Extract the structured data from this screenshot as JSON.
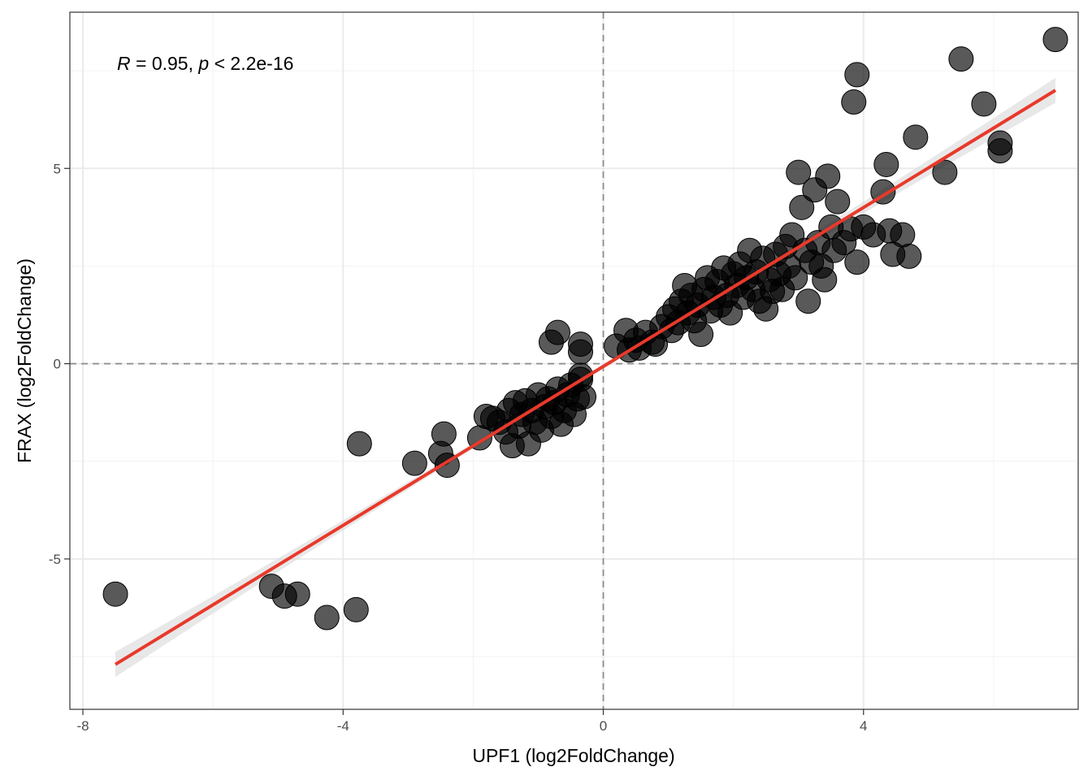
{
  "chart_data": {
    "type": "scatter",
    "xlabel": "UPF1 (log2FoldChange)",
    "ylabel": "FRAX (log2FoldChange)",
    "annotation": {
      "r_symbol": "R",
      "r_text": " = 0.95, ",
      "p_symbol": "p",
      "p_text": " < 2.2e-16"
    },
    "xlim": [
      -8.2,
      7.3
    ],
    "ylim": [
      -8.85,
      9.0
    ],
    "x_ticks": [
      -8,
      -4,
      0,
      4
    ],
    "x_tick_labels": [
      "-8",
      "-4",
      "0",
      "4"
    ],
    "y_ticks": [
      -5,
      0,
      5
    ],
    "y_tick_labels": [
      "-5",
      "0",
      "5"
    ],
    "x_minor": [
      -6,
      -2,
      2,
      6
    ],
    "y_minor": [
      -7.5,
      -2.5,
      2.5,
      7.5
    ],
    "reference_lines": {
      "x": 0,
      "y": 0
    },
    "grid": true,
    "colors": {
      "points": "#000000",
      "point_opacity": 0.65,
      "fit_line": "#e8392b",
      "confidence_band": "#d9d9d9",
      "reference_line": "#8c8c8c"
    },
    "fit": {
      "x_start": -7.5,
      "x_end": 6.95,
      "y_start": -7.7,
      "y_end": 7.0,
      "band_halfwidth_ends": 0.32,
      "band_halfwidth_center": 0.06
    },
    "points": [
      [
        -7.5,
        -5.9
      ],
      [
        -5.1,
        -5.7
      ],
      [
        -4.9,
        -5.95
      ],
      [
        -4.7,
        -5.9
      ],
      [
        -4.25,
        -6.5
      ],
      [
        -3.8,
        -6.3
      ],
      [
        -3.75,
        -2.05
      ],
      [
        -2.9,
        -2.55
      ],
      [
        -2.5,
        -2.3
      ],
      [
        -2.45,
        -1.8
      ],
      [
        -2.4,
        -2.6
      ],
      [
        -1.9,
        -1.9
      ],
      [
        -1.8,
        -1.35
      ],
      [
        -1.7,
        -1.4
      ],
      [
        -1.6,
        -1.5
      ],
      [
        -1.5,
        -1.75
      ],
      [
        -1.45,
        -1.2
      ],
      [
        -1.4,
        -2.1
      ],
      [
        -1.35,
        -1.0
      ],
      [
        -1.3,
        -1.6
      ],
      [
        -1.25,
        -1.3
      ],
      [
        -1.2,
        -0.95
      ],
      [
        -1.15,
        -2.05
      ],
      [
        -1.1,
        -1.2
      ],
      [
        -1.05,
        -1.5
      ],
      [
        -1.0,
        -0.8
      ],
      [
        -0.95,
        -1.7
      ],
      [
        -0.9,
        -1.1
      ],
      [
        -0.85,
        -0.9
      ],
      [
        -0.8,
        -1.35
      ],
      [
        -0.75,
        -1.0
      ],
      [
        -0.7,
        -0.65
      ],
      [
        -0.65,
        -1.55
      ],
      [
        -0.6,
        -1.2
      ],
      [
        -0.55,
        -0.8
      ],
      [
        -0.5,
        -0.55
      ],
      [
        -0.45,
        -1.3
      ],
      [
        -0.4,
        -0.9
      ],
      [
        -0.35,
        -0.4
      ],
      [
        -0.3,
        -0.85
      ],
      [
        -0.35,
        -0.3
      ],
      [
        -0.8,
        0.55
      ],
      [
        -0.7,
        0.8
      ],
      [
        -0.35,
        0.5
      ],
      [
        -0.35,
        0.3
      ],
      [
        0.2,
        0.45
      ],
      [
        0.35,
        0.85
      ],
      [
        0.4,
        0.35
      ],
      [
        0.5,
        0.6
      ],
      [
        0.55,
        0.4
      ],
      [
        0.65,
        0.8
      ],
      [
        0.75,
        0.55
      ],
      [
        0.8,
        0.5
      ],
      [
        0.9,
        0.95
      ],
      [
        1.0,
        1.2
      ],
      [
        1.05,
        0.85
      ],
      [
        1.1,
        1.4
      ],
      [
        1.15,
        1.05
      ],
      [
        1.2,
        1.6
      ],
      [
        1.25,
        2.0
      ],
      [
        1.3,
        1.3
      ],
      [
        1.35,
        1.75
      ],
      [
        1.4,
        1.1
      ],
      [
        1.45,
        1.5
      ],
      [
        1.5,
        0.75
      ],
      [
        1.55,
        1.9
      ],
      [
        1.6,
        2.2
      ],
      [
        1.65,
        1.35
      ],
      [
        1.7,
        1.7
      ],
      [
        1.75,
        2.1
      ],
      [
        1.8,
        1.5
      ],
      [
        1.85,
        2.45
      ],
      [
        1.9,
        1.75
      ],
      [
        1.95,
        1.3
      ],
      [
        2.0,
        2.3
      ],
      [
        2.05,
        2.0
      ],
      [
        2.1,
        2.55
      ],
      [
        2.15,
        1.7
      ],
      [
        2.2,
        2.2
      ],
      [
        2.25,
        2.9
      ],
      [
        2.3,
        1.9
      ],
      [
        2.35,
        2.35
      ],
      [
        2.4,
        1.6
      ],
      [
        2.45,
        2.7
      ],
      [
        2.5,
        1.4
      ],
      [
        2.55,
        2.15
      ],
      [
        2.6,
        1.85
      ],
      [
        2.65,
        2.8
      ],
      [
        2.7,
        2.3
      ],
      [
        2.75,
        1.9
      ],
      [
        2.8,
        3.0
      ],
      [
        2.85,
        2.5
      ],
      [
        2.9,
        3.3
      ],
      [
        2.95,
        2.2
      ],
      [
        3.0,
        4.9
      ],
      [
        3.05,
        4.0
      ],
      [
        3.1,
        2.9
      ],
      [
        3.15,
        1.6
      ],
      [
        3.2,
        2.6
      ],
      [
        3.25,
        4.45
      ],
      [
        3.3,
        3.1
      ],
      [
        3.35,
        2.5
      ],
      [
        3.4,
        2.15
      ],
      [
        3.45,
        4.8
      ],
      [
        3.5,
        3.5
      ],
      [
        3.55,
        2.9
      ],
      [
        3.6,
        4.15
      ],
      [
        3.7,
        3.1
      ],
      [
        3.8,
        3.45
      ],
      [
        3.9,
        2.6
      ],
      [
        3.85,
        6.7
      ],
      [
        3.9,
        7.4
      ],
      [
        4.0,
        3.5
      ],
      [
        4.15,
        3.3
      ],
      [
        4.3,
        4.4
      ],
      [
        4.35,
        5.1
      ],
      [
        4.4,
        3.4
      ],
      [
        4.45,
        2.8
      ],
      [
        4.6,
        3.3
      ],
      [
        4.7,
        2.75
      ],
      [
        4.8,
        5.8
      ],
      [
        5.25,
        4.9
      ],
      [
        5.5,
        7.8
      ],
      [
        5.85,
        6.65
      ],
      [
        6.1,
        5.65
      ],
      [
        6.1,
        5.45
      ],
      [
        6.95,
        8.3
      ]
    ]
  }
}
